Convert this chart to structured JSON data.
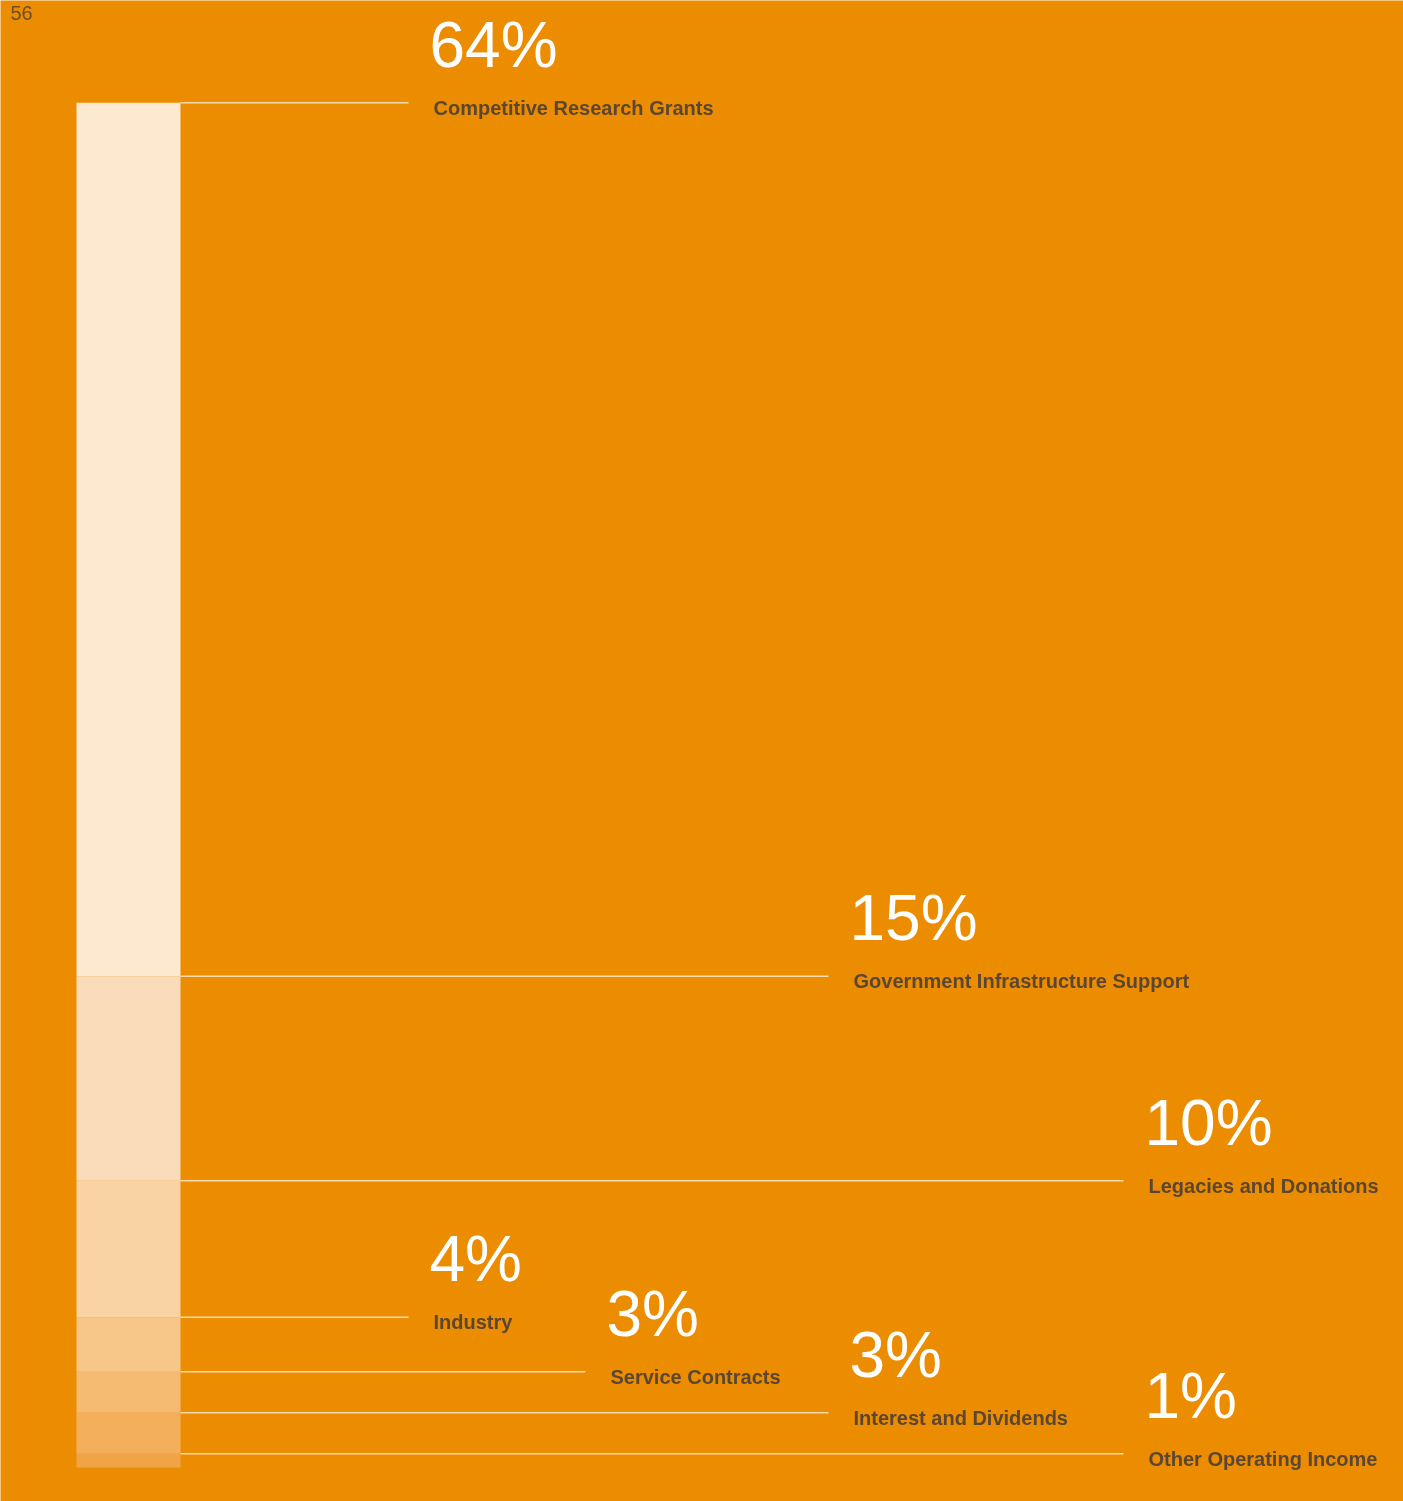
{
  "chart_data": {
    "type": "bar",
    "stacked": true,
    "categories": [
      null
    ],
    "annotations": [
      "56"
    ],
    "series": [
      {
        "name": "Other Operating Income",
        "color": "#f1a445",
        "values": [
          1
        ],
        "value_labels": [
          "1%"
        ]
      },
      {
        "name": "Interest and Dividends",
        "color": "#f3af5c",
        "values": [
          3
        ],
        "value_labels": [
          "3%"
        ]
      },
      {
        "name": "Service Contracts",
        "color": "#f5bb73",
        "values": [
          3
        ],
        "value_labels": [
          "3%"
        ]
      },
      {
        "name": "Industry",
        "color": "#f7c78a",
        "values": [
          4
        ],
        "value_labels": [
          "4%"
        ]
      },
      {
        "name": "Legacies and Donations",
        "color": "#f9d3a3",
        "values": [
          10
        ],
        "value_labels": [
          "10%"
        ]
      },
      {
        "name": "Government Infrastructure Support",
        "color": "#fadcba",
        "values": [
          15
        ],
        "value_labels": [
          "15%"
        ]
      },
      {
        "name": "Competitive Research Grants",
        "color": "#fde8d0",
        "values": [
          64
        ],
        "value_labels": [
          "64%"
        ]
      }
    ]
  }
}
